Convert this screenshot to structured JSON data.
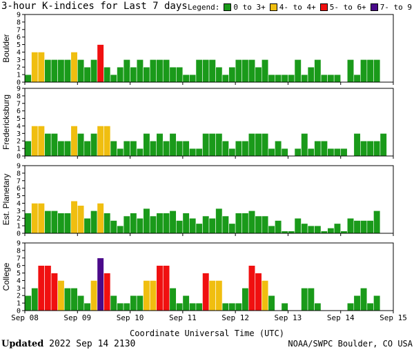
{
  "title": "3-hour K-indices for Last 7 days",
  "legend": {
    "label": "Legend:",
    "items": [
      {
        "label": "0 to 3+",
        "color": "#1a9a1a"
      },
      {
        "label": "4- to 4+",
        "color": "#f0be10"
      },
      {
        "label": "5- to 6+",
        "color": "#f01010"
      },
      {
        "label": "7- to 9",
        "color": "#4a0a8a"
      }
    ]
  },
  "footer": {
    "updated_label": "Updated",
    "updated_value": "2022 Sep 14 2130",
    "credit": "NOAA/SWPC Boulder, CO USA"
  },
  "chart_data": {
    "type": "bar",
    "xlabel": "Coordinate Universal Time (UTC)",
    "x_ticks": [
      "Sep 08",
      "Sep 09",
      "Sep 10",
      "Sep 11",
      "Sep 12",
      "Sep 13",
      "Sep 14",
      "Sep 15"
    ],
    "ylim": [
      0,
      9
    ],
    "y_ticks": [
      0,
      1,
      2,
      3,
      4,
      5,
      6,
      7,
      8,
      9
    ],
    "series": [
      {
        "name": "Boulder",
        "values": [
          1,
          4,
          4,
          3,
          3,
          3,
          3,
          4,
          3,
          2,
          3,
          5,
          2,
          1,
          2,
          3,
          2,
          3,
          2,
          3,
          3,
          3,
          2,
          2,
          1,
          1,
          3,
          3,
          3,
          2,
          1,
          2,
          3,
          3,
          3,
          2,
          3,
          1,
          1,
          1,
          1,
          3,
          1,
          2,
          3,
          1,
          1,
          1,
          0,
          3,
          1,
          3,
          3,
          3,
          0
        ]
      },
      {
        "name": "Fredericksburg",
        "values": [
          2,
          4,
          4,
          3,
          3,
          2,
          2,
          4,
          3,
          2,
          3,
          4,
          4,
          2,
          1,
          2,
          2,
          1,
          3,
          2,
          3,
          2,
          3,
          2,
          2,
          1,
          1,
          3,
          3,
          3,
          2,
          1,
          2,
          2,
          3,
          3,
          3,
          1,
          2,
          1,
          0,
          1,
          3,
          1,
          2,
          2,
          1,
          1,
          1,
          0,
          3,
          2,
          2,
          2,
          3,
          0
        ]
      },
      {
        "name": "Est. Planetary",
        "values": [
          2.7,
          4,
          4,
          3,
          3,
          2.7,
          2.7,
          4.3,
          3.7,
          2,
          3,
          4,
          2.7,
          1.7,
          1,
          2.3,
          2.7,
          2,
          3.3,
          2.3,
          2.7,
          2.7,
          3,
          1.7,
          2.7,
          2,
          1.3,
          2.3,
          2,
          3.3,
          2.3,
          1.3,
          2.7,
          2.7,
          3,
          2.3,
          2.3,
          1,
          1.7,
          0.3,
          0.3,
          2,
          1.3,
          1,
          1,
          0.3,
          0.7,
          1.3,
          0.3,
          2,
          1.7,
          1.7,
          1.7,
          3
        ]
      },
      {
        "name": "College",
        "values": [
          2,
          3,
          6,
          6,
          5,
          4,
          3,
          3,
          2,
          1,
          4,
          7,
          5,
          2,
          1,
          1,
          2,
          2,
          4,
          4,
          6,
          6,
          3,
          1,
          2,
          1,
          1,
          5,
          4,
          4,
          1,
          1,
          1,
          3,
          6,
          5,
          4,
          2,
          0,
          1,
          0,
          0,
          3,
          3,
          1,
          0,
          0,
          0,
          0,
          1,
          2,
          3,
          1,
          2,
          0
        ]
      }
    ],
    "colors": {
      "quiet": "#1a9a1a",
      "active": "#f0be10",
      "storm": "#f01010",
      "severe": "#4a0a8a"
    },
    "grid": false
  }
}
